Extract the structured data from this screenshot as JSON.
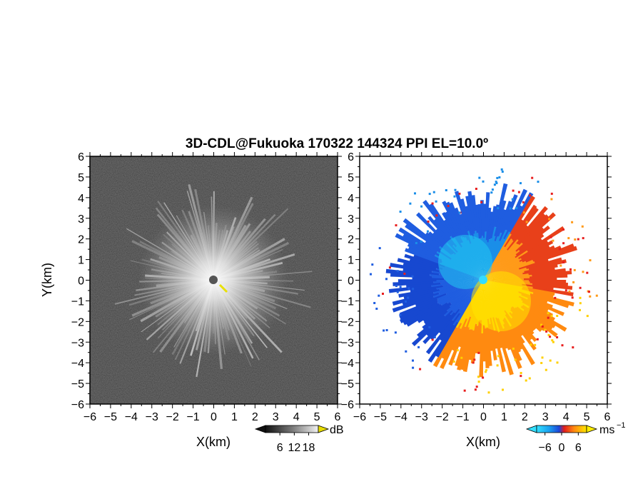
{
  "title": "3D-CDL@Fukuoka 170322 144324 PPI EL=10.0º",
  "colors": {
    "background": "#ffffff",
    "velocity_negative": "#1f5de0",
    "velocity_near_zero_neg": "#22c8f0",
    "velocity_near_zero_pos": "#ffe200",
    "velocity_positive": "#ff7a10",
    "velocity_strong_positive": "#e81e1e",
    "radar_site_left": "#555555",
    "radar_site_right": "#33dcff"
  },
  "chart_data": [
    {
      "type": "heatmap",
      "panel": "left",
      "quantity": "backscatter intensity",
      "xlabel": "X(km)",
      "ylabel": "Y(km)",
      "xlim": [
        -6,
        6
      ],
      "ylim": [
        -6,
        6
      ],
      "x_ticks": [
        "−6",
        "−5",
        "−4",
        "−3",
        "−2",
        "−1",
        "0",
        "1",
        "2",
        "3",
        "4",
        "5",
        "6"
      ],
      "y_ticks": [
        "6",
        "5",
        "4",
        "3",
        "2",
        "1",
        "0",
        "−1",
        "−2",
        "−3",
        "−4",
        "−5",
        "−6"
      ],
      "radar_site": [
        0,
        0
      ],
      "colorbar": {
        "unit": "dB",
        "tick_labels": [
          "6",
          "12",
          "18"
        ],
        "ticks": [
          6,
          12,
          18
        ],
        "range": [
          0,
          22
        ],
        "colormap": "grayscale"
      }
    },
    {
      "type": "heatmap",
      "panel": "right",
      "quantity": "Doppler radial velocity",
      "xlabel": "X(km)",
      "xlim": [
        -6,
        6
      ],
      "ylim": [
        -6,
        6
      ],
      "x_ticks": [
        "−6",
        "−5",
        "−4",
        "−3",
        "−2",
        "−1",
        "0",
        "1",
        "2",
        "3",
        "4",
        "5",
        "6"
      ],
      "y_ticks": [
        "6",
        "5",
        "4",
        "3",
        "2",
        "1",
        "0",
        "−1",
        "−2",
        "−3",
        "−4",
        "−5",
        "−6"
      ],
      "radar_site": [
        0,
        0
      ],
      "colorbar": {
        "unit": "ms",
        "unit_exponent": "−1",
        "tick_labels": [
          "−6",
          "0",
          "6"
        ],
        "ticks": [
          -6,
          0,
          6
        ],
        "range": [
          -9,
          9
        ],
        "colormap": "cyan-blue-red-orange-yellow"
      }
    }
  ]
}
